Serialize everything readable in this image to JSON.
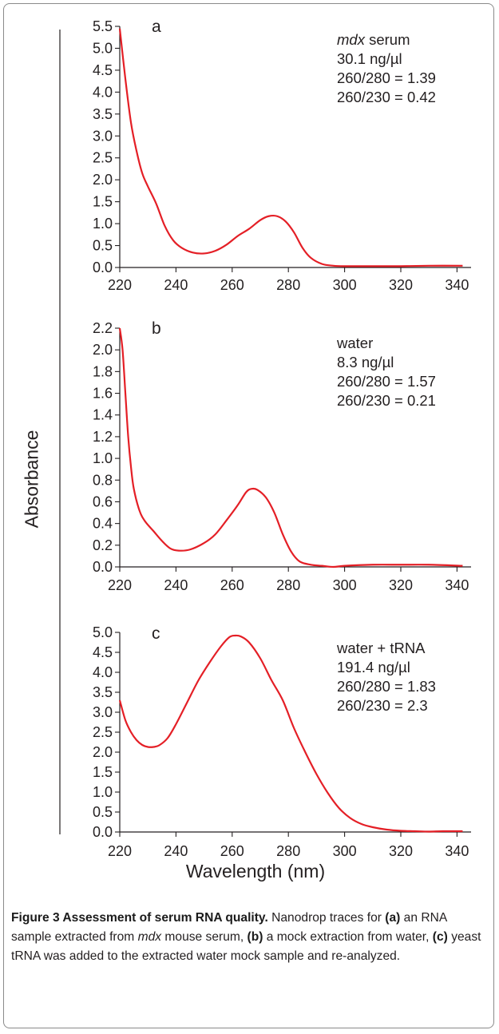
{
  "figure": {
    "ylabel": "Absorbance",
    "xlabel": "Wavelength (nm)",
    "series_color": "#e41f26"
  },
  "chart_data": [
    {
      "type": "line",
      "panel_label": "a",
      "annotation": [
        "mdx serum",
        "30.1 ng/µl",
        "260/280 = 1.39",
        "260/230 = 0.42"
      ],
      "annotation_italic_prefix": "mdx",
      "xlim": [
        220,
        345
      ],
      "ylim": [
        0,
        5.5
      ],
      "xticks": [
        220,
        240,
        260,
        280,
        300,
        320,
        340
      ],
      "yticks": [
        0.0,
        0.5,
        1.0,
        1.5,
        2.0,
        2.5,
        3.0,
        3.5,
        4.0,
        4.5,
        5.0,
        5.5
      ],
      "series": [
        {
          "x": [
            220,
            222,
            224,
            226,
            228,
            230,
            233,
            236,
            239,
            242,
            246,
            250,
            254,
            258,
            262,
            266,
            270,
            273,
            276,
            279,
            282,
            285,
            288,
            292,
            296,
            300,
            310,
            320,
            330,
            342
          ],
          "y": [
            5.45,
            4.3,
            3.3,
            2.65,
            2.15,
            1.85,
            1.45,
            0.95,
            0.62,
            0.45,
            0.34,
            0.32,
            0.38,
            0.52,
            0.72,
            0.88,
            1.08,
            1.17,
            1.17,
            1.05,
            0.8,
            0.45,
            0.22,
            0.08,
            0.04,
            0.03,
            0.03,
            0.03,
            0.04,
            0.04
          ]
        }
      ]
    },
    {
      "type": "line",
      "panel_label": "b",
      "annotation": [
        "water",
        "8.3 ng/µl",
        "260/280 = 1.57",
        "260/230 = 0.21"
      ],
      "xlim": [
        220,
        345
      ],
      "ylim": [
        0,
        2.2
      ],
      "xticks": [
        220,
        240,
        260,
        280,
        300,
        320,
        340
      ],
      "yticks": [
        0.0,
        0.2,
        0.4,
        0.6,
        0.8,
        1.0,
        1.2,
        1.4,
        1.6,
        1.8,
        2.0,
        2.2
      ],
      "series": [
        {
          "x": [
            220,
            221,
            222,
            223,
            224,
            225,
            227,
            229,
            232,
            235,
            238,
            241,
            245,
            250,
            254,
            258,
            262,
            265,
            267,
            269,
            272,
            275,
            278,
            281,
            284,
            288,
            292,
            296,
            300,
            310,
            320,
            330,
            342
          ],
          "y": [
            2.2,
            2.0,
            1.6,
            1.2,
            0.92,
            0.72,
            0.52,
            0.42,
            0.33,
            0.24,
            0.17,
            0.15,
            0.16,
            0.22,
            0.3,
            0.43,
            0.57,
            0.69,
            0.72,
            0.71,
            0.64,
            0.5,
            0.3,
            0.14,
            0.05,
            0.02,
            0.01,
            0.0,
            0.01,
            0.02,
            0.02,
            0.02,
            0.01
          ]
        }
      ]
    },
    {
      "type": "line",
      "panel_label": "c",
      "annotation": [
        "water + tRNA",
        "191.4 ng/µl",
        "260/280 = 1.83",
        "260/230 = 2.3"
      ],
      "xlim": [
        220,
        345
      ],
      "ylim": [
        0,
        5.0
      ],
      "xticks": [
        220,
        240,
        260,
        280,
        300,
        320,
        340
      ],
      "yticks": [
        0.0,
        0.5,
        1.0,
        1.5,
        2.0,
        2.5,
        3.0,
        3.5,
        4.0,
        4.5,
        5.0
      ],
      "series": [
        {
          "x": [
            220,
            222,
            224,
            226,
            228,
            230,
            232,
            234,
            237,
            240,
            244,
            248,
            252,
            256,
            259,
            261,
            263,
            266,
            270,
            274,
            278,
            282,
            286,
            290,
            294,
            298,
            302,
            306,
            310,
            315,
            320,
            325,
            330,
            335,
            342
          ],
          "y": [
            3.3,
            2.8,
            2.5,
            2.3,
            2.18,
            2.13,
            2.13,
            2.17,
            2.35,
            2.7,
            3.25,
            3.8,
            4.25,
            4.65,
            4.88,
            4.92,
            4.9,
            4.75,
            4.35,
            3.8,
            3.3,
            2.6,
            2.0,
            1.45,
            0.98,
            0.6,
            0.35,
            0.2,
            0.12,
            0.06,
            0.03,
            0.02,
            0.01,
            0.02,
            0.02
          ]
        }
      ]
    }
  ],
  "caption": {
    "title": "Figure 3 Assessment of serum RNA quality.",
    "text_1": " Nanodrop traces for ",
    "label_a": "(a)",
    "text_2": " an RNA sample extracted from ",
    "mdx": "mdx",
    "text_3": " mouse serum, ",
    "label_b": "(b)",
    "text_4": " a mock extraction from water, ",
    "label_c": "(c)",
    "text_5": " yeast tRNA was added to the extracted water mock sample and re-analyzed."
  }
}
